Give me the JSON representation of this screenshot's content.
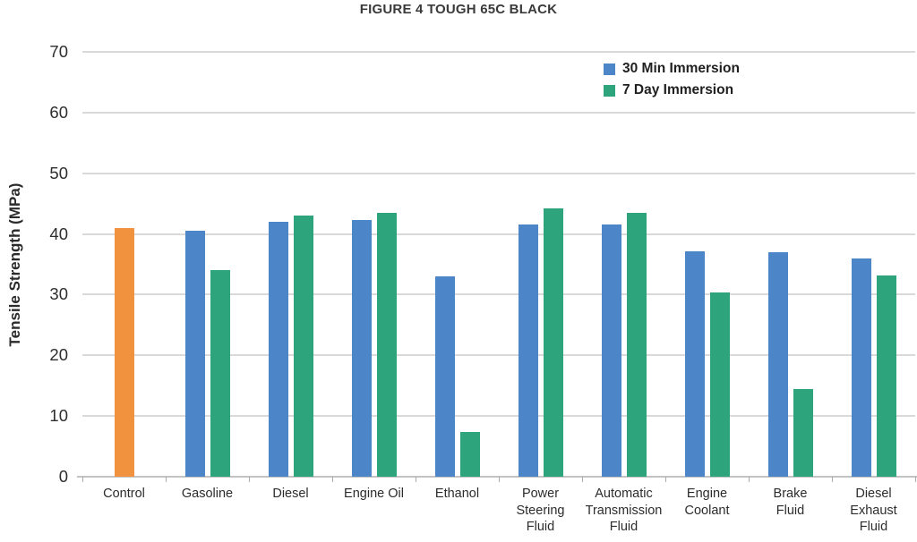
{
  "page": {
    "title": "FIGURE 4 TOUGH 65C BLACK"
  },
  "chart_data": {
    "type": "bar",
    "title": "FIGURE 4 TOUGH 65C BLACK",
    "xlabel": "",
    "ylabel": "Tensile Strength (MPa)",
    "ylim": [
      0,
      70
    ],
    "yticks": [
      0,
      10,
      20,
      30,
      40,
      50,
      60,
      70
    ],
    "grid": true,
    "legend_position": "top-right-inside",
    "categories": [
      "Control",
      "Gasoline",
      "Diesel",
      "Engine Oil",
      "Ethanol",
      "Power Steering Fluid",
      "Automatic Transmission Fluid",
      "Engine Coolant",
      "Brake Fluid",
      "Diesel Exhaust Fluid"
    ],
    "category_labels_display": [
      "Control",
      "Gasoline",
      "Diesel",
      "Engine Oil",
      "Ethanol",
      "Power\nSteering\nFluid",
      "Automatic\nTransmission\nFluid",
      "Engine\nCoolant",
      "Brake\nFluid",
      "Diesel\nExhaust\nFluid"
    ],
    "series": [
      {
        "name": "Control",
        "color": "#f0923e",
        "in_legend": false,
        "values": [
          41,
          null,
          null,
          null,
          null,
          null,
          null,
          null,
          null,
          null
        ]
      },
      {
        "name": "30 Min Immersion",
        "color": "#4d85c9",
        "in_legend": true,
        "values": [
          null,
          40.5,
          42,
          42.3,
          33,
          41.5,
          41.5,
          37.2,
          37,
          36
        ]
      },
      {
        "name": "7 Day Immersion",
        "color": "#2ea47c",
        "in_legend": true,
        "values": [
          null,
          34,
          43,
          43.5,
          7.3,
          44.2,
          43.5,
          30.4,
          14.5,
          33.2
        ]
      }
    ],
    "colors": {
      "grid": "#d9d9d9",
      "axis": "#c3c3c3",
      "tick": "#ababab",
      "text": "#2e2e2e"
    }
  }
}
